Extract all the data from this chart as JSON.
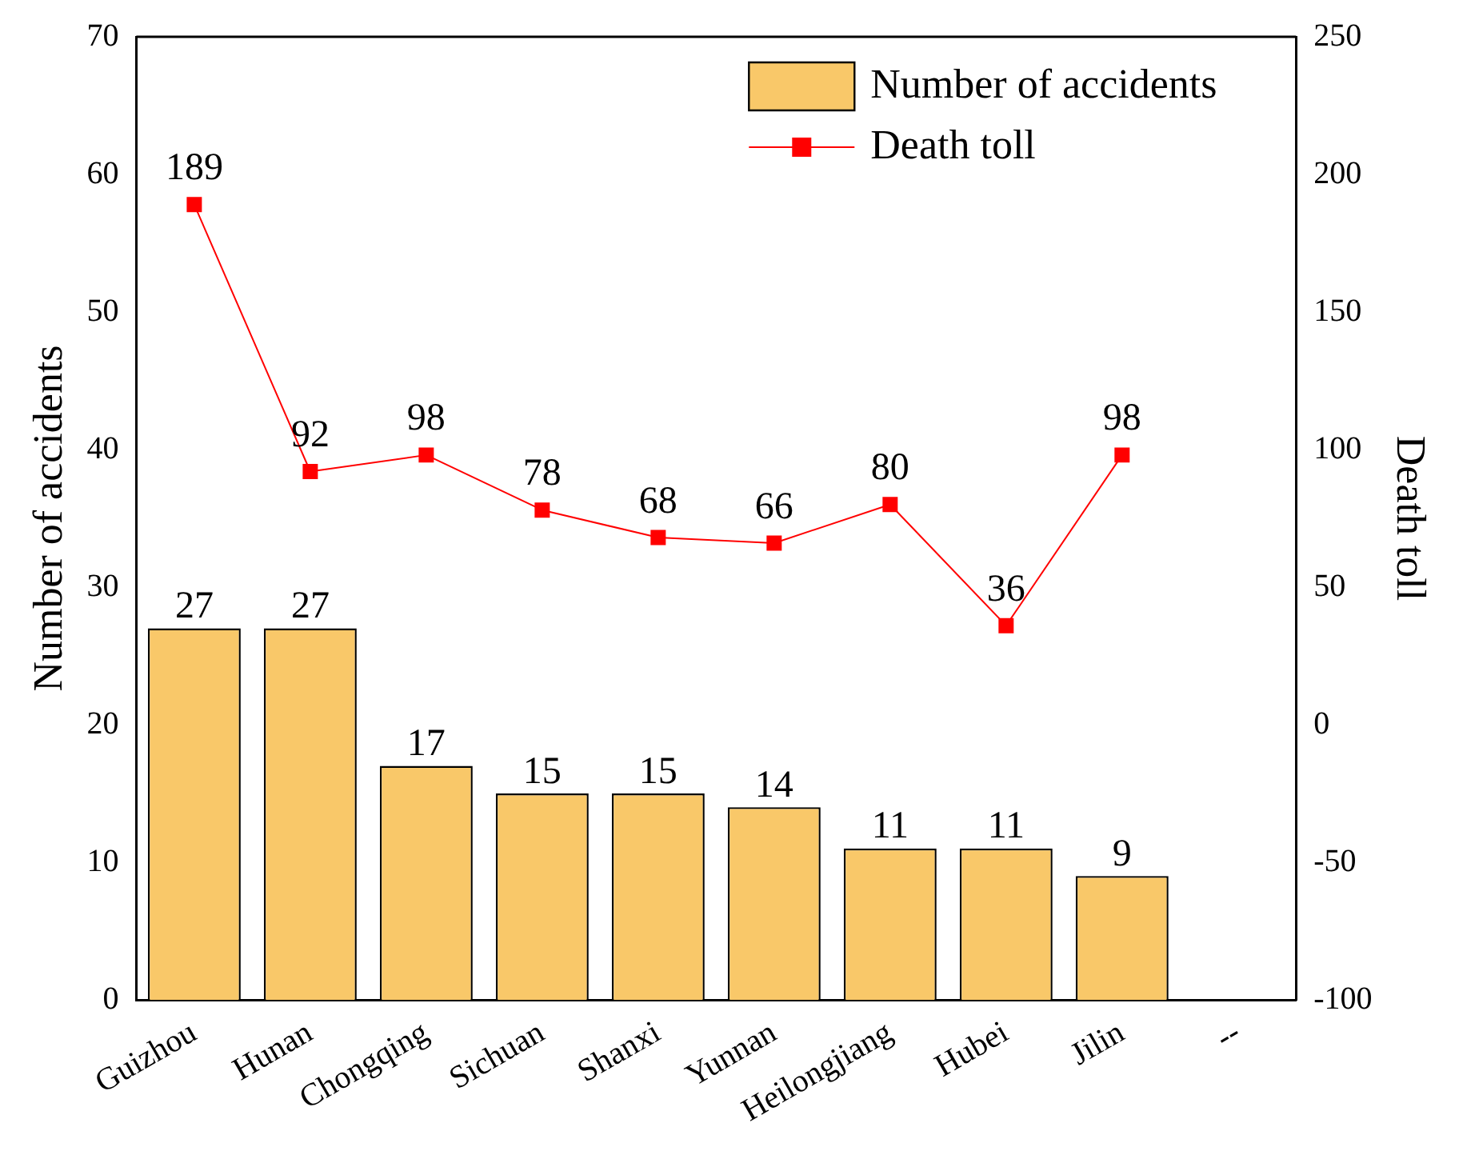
{
  "chart_data": {
    "type": "bar",
    "xlabel": null,
    "ylabel": "Number of accidents",
    "y2label": "Death toll",
    "categories": [
      "Guizhou",
      "Hunan",
      "Chongqing",
      "Sichuan",
      "Shanxi",
      "Yunnan",
      "Heilongjiang",
      "Hubei",
      "Jilin",
      "--"
    ],
    "series": [
      {
        "name": "Number of accidents",
        "color": "#f9c869",
        "values": [
          27,
          27,
          17,
          15,
          15,
          14,
          11,
          11,
          9,
          null
        ]
      },
      {
        "name": "Death toll",
        "type": "line",
        "axis": "y2",
        "color": "#ff0000",
        "marker": "square",
        "values": [
          189,
          92,
          98,
          78,
          68,
          66,
          80,
          36,
          98,
          null
        ]
      }
    ],
    "ylim": [
      0,
      70
    ],
    "yticks": [
      0,
      10,
      20,
      30,
      40,
      50,
      60,
      70
    ],
    "y2lim": [
      -100,
      250
    ],
    "y2ticks": [
      -100,
      -50,
      0,
      50,
      100,
      150,
      200,
      250
    ],
    "data_labels": true,
    "legend": "top right",
    "grid": false
  }
}
